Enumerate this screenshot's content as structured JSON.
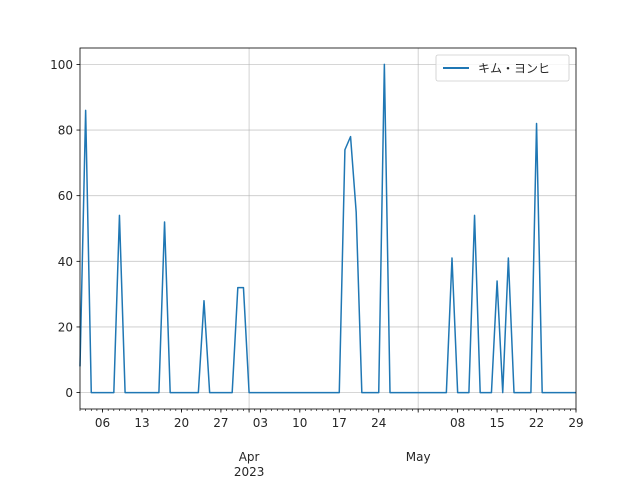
{
  "chart_data": {
    "type": "line",
    "series": [
      {
        "name": "キム・ヨンヒ",
        "color": "#1f77b4",
        "x": [
          "2023-03-02",
          "2023-03-03",
          "2023-03-04",
          "2023-03-05",
          "2023-03-06",
          "2023-03-07",
          "2023-03-08",
          "2023-03-09",
          "2023-03-10",
          "2023-03-11",
          "2023-03-12",
          "2023-03-13",
          "2023-03-14",
          "2023-03-15",
          "2023-03-16",
          "2023-03-17",
          "2023-03-18",
          "2023-03-19",
          "2023-03-20",
          "2023-03-21",
          "2023-03-22",
          "2023-03-23",
          "2023-03-24",
          "2023-03-25",
          "2023-03-26",
          "2023-03-27",
          "2023-03-28",
          "2023-03-29",
          "2023-03-30",
          "2023-03-31",
          "2023-04-01",
          "2023-04-02",
          "2023-04-03",
          "2023-04-04",
          "2023-04-05",
          "2023-04-06",
          "2023-04-07",
          "2023-04-08",
          "2023-04-09",
          "2023-04-10",
          "2023-04-11",
          "2023-04-12",
          "2023-04-13",
          "2023-04-14",
          "2023-04-15",
          "2023-04-16",
          "2023-04-17",
          "2023-04-18",
          "2023-04-19",
          "2023-04-20",
          "2023-04-21",
          "2023-04-22",
          "2023-04-23",
          "2023-04-24",
          "2023-04-25",
          "2023-04-26",
          "2023-04-27",
          "2023-04-28",
          "2023-04-29",
          "2023-04-30",
          "2023-05-01",
          "2023-05-02",
          "2023-05-03",
          "2023-05-04",
          "2023-05-05",
          "2023-05-06",
          "2023-05-07",
          "2023-05-08",
          "2023-05-09",
          "2023-05-10",
          "2023-05-11",
          "2023-05-12",
          "2023-05-13",
          "2023-05-14",
          "2023-05-15",
          "2023-05-16",
          "2023-05-17",
          "2023-05-18",
          "2023-05-19",
          "2023-05-20",
          "2023-05-21",
          "2023-05-22",
          "2023-05-23",
          "2023-05-24",
          "2023-05-25",
          "2023-05-26",
          "2023-05-27",
          "2023-05-28",
          "2023-05-29"
        ],
        "values": [
          8,
          86,
          0,
          0,
          0,
          0,
          0,
          54,
          0,
          0,
          0,
          0,
          0,
          0,
          0,
          52,
          0,
          0,
          0,
          0,
          0,
          0,
          28,
          0,
          0,
          0,
          0,
          0,
          32,
          32,
          0,
          0,
          0,
          0,
          0,
          0,
          0,
          0,
          0,
          0,
          0,
          0,
          0,
          0,
          0,
          0,
          0,
          74,
          78,
          55,
          0,
          0,
          0,
          0,
          100,
          0,
          0,
          0,
          0,
          0,
          0,
          0,
          0,
          0,
          0,
          0,
          41,
          0,
          0,
          0,
          54,
          0,
          0,
          0,
          34,
          0,
          41,
          0,
          0,
          0,
          0,
          82,
          0,
          0,
          0,
          0,
          0,
          0,
          0
        ]
      }
    ],
    "xlim": [
      "2023-03-02",
      "2023-05-29"
    ],
    "ylim": [
      -5,
      105
    ],
    "x_major_ticks": [
      {
        "date": "2023-03-06",
        "label": "06"
      },
      {
        "date": "2023-03-13",
        "label": "13"
      },
      {
        "date": "2023-03-20",
        "label": "20"
      },
      {
        "date": "2023-03-27",
        "label": "27"
      },
      {
        "date": "2023-04-03",
        "label": "03"
      },
      {
        "date": "2023-04-10",
        "label": "10"
      },
      {
        "date": "2023-04-17",
        "label": "17"
      },
      {
        "date": "2023-04-24",
        "label": "24"
      },
      {
        "date": "2023-05-08",
        "label": "08"
      },
      {
        "date": "2023-05-15",
        "label": "15"
      },
      {
        "date": "2023-05-22",
        "label": "22"
      },
      {
        "date": "2023-05-29",
        "label": "29"
      }
    ],
    "x_month_ticks": [
      {
        "date": "2023-04-01",
        "label": "Apr",
        "sublabel": "2023"
      },
      {
        "date": "2023-05-01",
        "label": "May",
        "sublabel": ""
      }
    ],
    "y_ticks": [
      0,
      20,
      40,
      60,
      80,
      100
    ],
    "grid": true,
    "legend_position": "top-right",
    "title": "",
    "xlabel": "",
    "ylabel": ""
  }
}
